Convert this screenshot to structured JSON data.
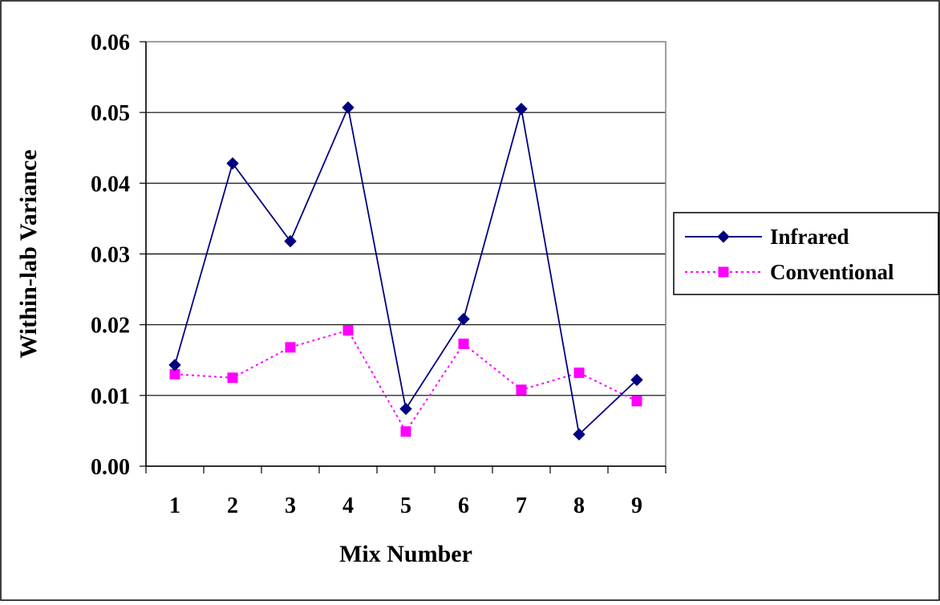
{
  "chart_data": {
    "type": "line",
    "title": "",
    "xlabel": "Mix Number",
    "ylabel": "Within-lab Variance",
    "categories": [
      "1",
      "2",
      "3",
      "4",
      "5",
      "6",
      "7",
      "8",
      "9"
    ],
    "ylim": [
      0,
      0.06
    ],
    "yticks": [
      "0.00",
      "0.01",
      "0.02",
      "0.03",
      "0.04",
      "0.05",
      "0.06"
    ],
    "grid": "horizontal",
    "legend_position": "right",
    "series": [
      {
        "name": "Infrared",
        "color": "#000080",
        "marker": "diamond",
        "line_style": "solid",
        "values": [
          0.0143,
          0.0428,
          0.0318,
          0.0507,
          0.0081,
          0.0208,
          0.0505,
          0.0045,
          0.0122
        ]
      },
      {
        "name": "Conventional",
        "color": "#FF00FF",
        "marker": "square",
        "line_style": "dotted",
        "values": [
          0.013,
          0.0125,
          0.0168,
          0.0192,
          0.0049,
          0.0173,
          0.0108,
          0.0132,
          0.0092
        ]
      }
    ]
  }
}
